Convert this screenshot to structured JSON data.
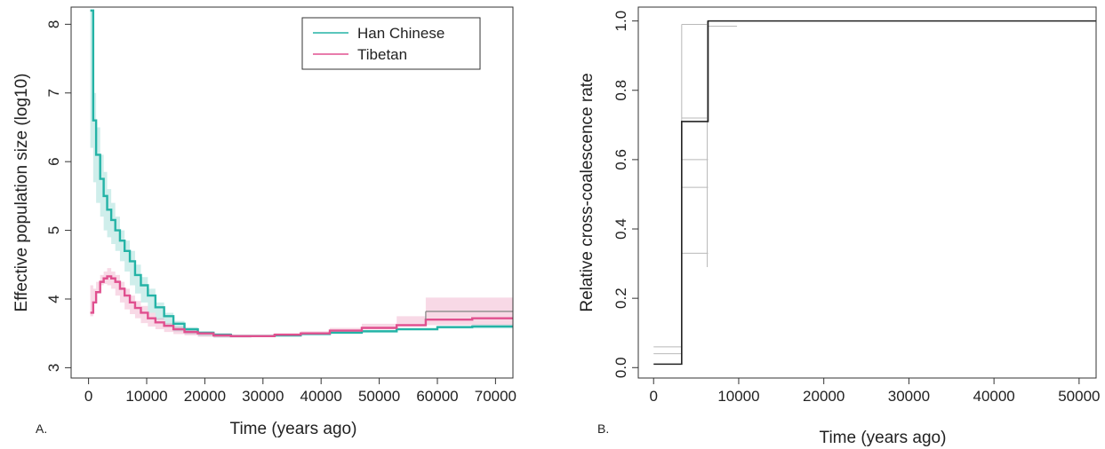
{
  "panels": {
    "a_label": "A.",
    "b_label": "B."
  },
  "chart_data": [
    {
      "type": "line",
      "panel": "A.",
      "xlabel": "Time (years ago)",
      "ylabel": "Effective population size (log10)",
      "xlim": [
        -3000,
        73000
      ],
      "ylim": [
        2.85,
        8.25
      ],
      "xticks": [
        0,
        10000,
        20000,
        30000,
        40000,
        50000,
        60000,
        70000
      ],
      "yticks": [
        3,
        4,
        5,
        6,
        7,
        8
      ],
      "grid": false,
      "legend": {
        "position": "top-right",
        "entries": [
          "Han Chinese",
          "Tibetan"
        ]
      },
      "colors": {
        "Han Chinese": "#24b3a6",
        "Tibetan": "#e0508f"
      },
      "series": [
        {
          "name": "Han Chinese",
          "step": true,
          "x": [
            300,
            800,
            1300,
            2000,
            2600,
            3200,
            3900,
            4600,
            5400,
            6200,
            7100,
            8000,
            9000,
            10200,
            11500,
            13000,
            14600,
            16500,
            18800,
            21500,
            24500,
            28000,
            32000,
            36500,
            41500,
            47000,
            53000,
            60000,
            66000,
            73000
          ],
          "y": [
            8.2,
            6.6,
            6.1,
            5.75,
            5.5,
            5.3,
            5.15,
            5.0,
            4.85,
            4.7,
            4.55,
            4.35,
            4.2,
            4.05,
            3.88,
            3.75,
            3.64,
            3.56,
            3.51,
            3.48,
            3.46,
            3.46,
            3.47,
            3.49,
            3.51,
            3.53,
            3.56,
            3.59,
            3.6,
            3.6
          ],
          "band": {
            "upper": [
              8.2,
              7.0,
              6.5,
              6.1,
              5.85,
              5.6,
              5.4,
              5.2,
              5.0,
              4.85,
              4.7,
              4.5,
              4.32,
              4.15,
              3.95,
              3.8,
              3.68,
              3.59,
              3.53,
              3.5,
              3.48,
              3.48,
              3.49,
              3.51,
              3.53,
              3.55,
              3.58,
              3.61,
              3.63,
              3.63
            ],
            "lower": [
              7.0,
              6.2,
              5.7,
              5.4,
              5.2,
              5.0,
              4.9,
              4.8,
              4.7,
              4.55,
              4.4,
              4.2,
              4.08,
              3.95,
              3.8,
              3.7,
              3.6,
              3.53,
              3.49,
              3.46,
              3.44,
              3.44,
              3.45,
              3.47,
              3.49,
              3.51,
              3.54,
              3.56,
              3.57,
              3.57
            ]
          }
        },
        {
          "name": "Tibetan",
          "step": true,
          "x": [
            300,
            800,
            1300,
            2000,
            2600,
            3200,
            3900,
            4600,
            5400,
            6200,
            7100,
            8000,
            9000,
            10200,
            11500,
            13000,
            14600,
            16500,
            18800,
            21500,
            24500,
            28000,
            32000,
            36500,
            41500,
            47000,
            53000,
            58000,
            66000,
            73000
          ],
          "y": [
            3.8,
            3.95,
            4.1,
            4.25,
            4.3,
            4.33,
            4.3,
            4.25,
            4.15,
            4.05,
            3.95,
            3.87,
            3.8,
            3.72,
            3.66,
            3.61,
            3.56,
            3.52,
            3.5,
            3.47,
            3.46,
            3.46,
            3.48,
            3.5,
            3.54,
            3.58,
            3.62,
            3.7,
            3.72,
            3.72
          ],
          "band": {
            "upper": [
              4.2,
              4.15,
              4.25,
              4.35,
              4.4,
              4.45,
              4.4,
              4.35,
              4.25,
              4.15,
              4.05,
              3.97,
              3.9,
              3.8,
              3.72,
              3.65,
              3.6,
              3.55,
              3.52,
              3.5,
              3.48,
              3.48,
              3.5,
              3.53,
              3.58,
              3.64,
              3.75,
              4.02,
              4.02,
              4.02
            ],
            "lower": [
              3.6,
              3.75,
              3.95,
              4.12,
              4.2,
              4.22,
              4.2,
              4.15,
              4.05,
              3.95,
              3.85,
              3.78,
              3.72,
              3.65,
              3.6,
              3.56,
              3.52,
              3.49,
              3.47,
              3.45,
              3.44,
              3.44,
              3.46,
              3.48,
              3.51,
              3.53,
              3.56,
              3.6,
              3.62,
              3.62
            ]
          }
        }
      ],
      "secondary_series": {
        "description": "grey step line",
        "x": [
          58000,
          73000
        ],
        "y": [
          3.82,
          3.82
        ]
      }
    },
    {
      "type": "line",
      "panel": "B.",
      "xlabel": "Time (years ago)",
      "ylabel": "Relative cross-coalescence rate",
      "xlim": [
        -1800,
        52000
      ],
      "ylim": [
        -0.03,
        1.04
      ],
      "xticks": [
        0,
        10000,
        20000,
        30000,
        40000,
        50000
      ],
      "yticks": [
        0.0,
        0.2,
        0.4,
        0.6,
        0.8,
        1.0
      ],
      "grid": false,
      "series": [
        {
          "step": true,
          "x": [
            0,
            3300,
            6400,
            52000
          ],
          "y": [
            0.01,
            0.71,
            1.0,
            1.0
          ]
        }
      ],
      "faint_segments": [
        {
          "x": [
            0,
            3300
          ],
          "y": [
            0.06,
            0.06
          ]
        },
        {
          "x": [
            0,
            3300
          ],
          "y": [
            0.04,
            0.04
          ]
        },
        {
          "x": [
            3300,
            6400
          ],
          "y": [
            0.33,
            0.33
          ]
        },
        {
          "x": [
            3300,
            6400
          ],
          "y": [
            0.52,
            0.52
          ]
        },
        {
          "x": [
            3300,
            6400
          ],
          "y": [
            0.6,
            0.6
          ]
        },
        {
          "x": [
            3300,
            6400
          ],
          "y": [
            0.72,
            0.72
          ]
        },
        {
          "x": [
            3300,
            6400
          ],
          "y": [
            0.99,
            0.99
          ]
        },
        {
          "x": [
            6400,
            9800
          ],
          "y": [
            0.985,
            0.985
          ]
        },
        {
          "x": [
            6300,
            6300
          ],
          "y": [
            0.29,
            1.0
          ]
        },
        {
          "x": [
            3300,
            3300
          ],
          "y": [
            0.06,
            0.99
          ]
        }
      ]
    }
  ]
}
